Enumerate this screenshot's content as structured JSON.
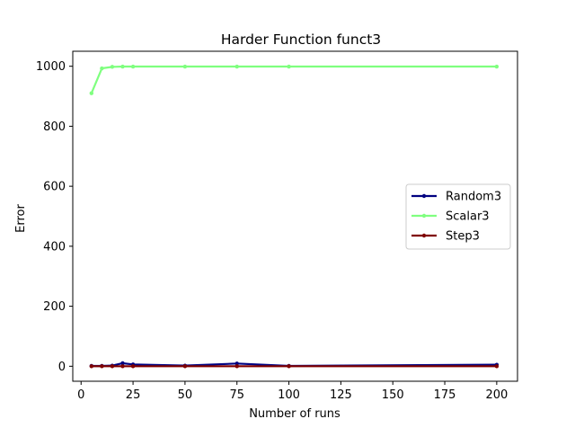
{
  "chart_data": {
    "type": "line",
    "title": "Harder Function funct3",
    "xlabel": "Number of runs",
    "ylabel": "Error",
    "xlim": [
      -4,
      210
    ],
    "ylim": [
      -50,
      1050
    ],
    "xticks": [
      0,
      25,
      50,
      75,
      100,
      125,
      150,
      175,
      200
    ],
    "yticks": [
      0,
      200,
      400,
      600,
      800,
      1000
    ],
    "grid": false,
    "legend_position": "center-right",
    "x": [
      5,
      10,
      15,
      20,
      25,
      50,
      75,
      100,
      200
    ],
    "series": [
      {
        "name": "Random3",
        "color": "#000080",
        "values": [
          1,
          1,
          2,
          10,
          6,
          2,
          9,
          1,
          5
        ]
      },
      {
        "name": "Scalar3",
        "color": "#7fff7f",
        "values": [
          910,
          993,
          998,
          999,
          999,
          999,
          999,
          999,
          999
        ]
      },
      {
        "name": "Step3",
        "color": "#800000",
        "values": [
          0,
          0,
          0,
          0,
          0,
          0,
          0,
          0,
          0
        ]
      }
    ]
  }
}
